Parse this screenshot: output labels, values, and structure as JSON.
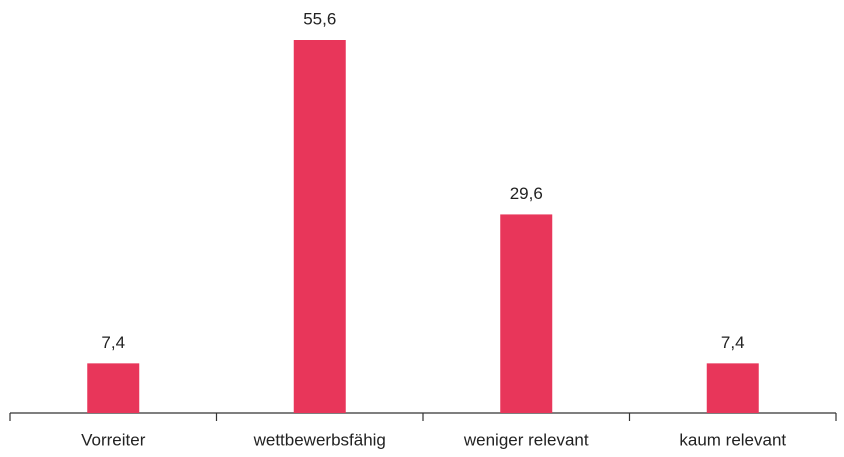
{
  "chart_data": {
    "type": "bar",
    "categories": [
      "Vorreiter",
      "wettbewerbsfähig",
      "weniger relevant",
      "kaum relevant"
    ],
    "values": [
      7.4,
      55.6,
      29.6,
      7.4
    ],
    "value_labels": [
      "7,4",
      "55,6",
      "29,6",
      "7,4"
    ],
    "color": "#e8365a"
  }
}
